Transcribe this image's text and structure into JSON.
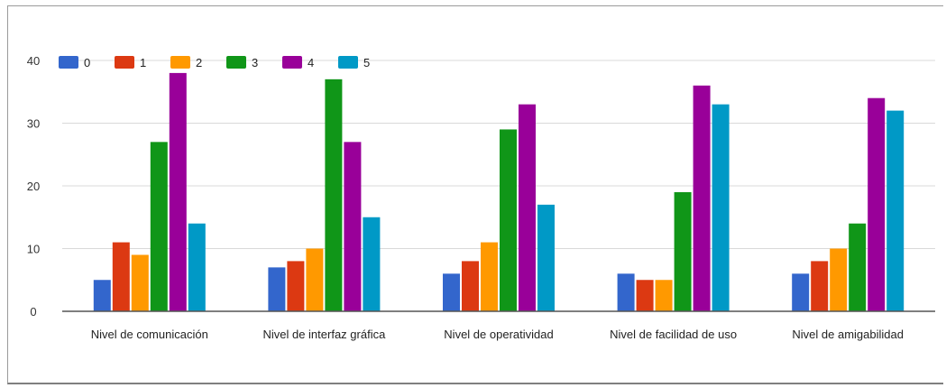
{
  "chart_data": {
    "type": "bar",
    "title": "",
    "xlabel": "",
    "ylabel": "",
    "ylim": [
      0,
      40
    ],
    "yticks": [
      0,
      10,
      20,
      30,
      40
    ],
    "grid": true,
    "legend_position": "top-left",
    "categories": [
      "Nivel de comunicación",
      "Nivel de interfaz gráfica",
      "Nivel de operatividad",
      "Nivel de facilidad de uso",
      "Nivel de amigabilidad"
    ],
    "series": [
      {
        "name": "0",
        "color": "#3366cc",
        "values": [
          5,
          7,
          6,
          6,
          6
        ]
      },
      {
        "name": "1",
        "color": "#dc3912",
        "values": [
          11,
          8,
          8,
          5,
          8
        ]
      },
      {
        "name": "2",
        "color": "#ff9900",
        "values": [
          9,
          10,
          11,
          5,
          10
        ]
      },
      {
        "name": "3",
        "color": "#109618",
        "values": [
          27,
          37,
          29,
          19,
          14
        ]
      },
      {
        "name": "4",
        "color": "#990099",
        "values": [
          38,
          27,
          33,
          36,
          34
        ]
      },
      {
        "name": "5",
        "color": "#0099c6",
        "values": [
          14,
          15,
          17,
          33,
          32
        ]
      }
    ]
  }
}
